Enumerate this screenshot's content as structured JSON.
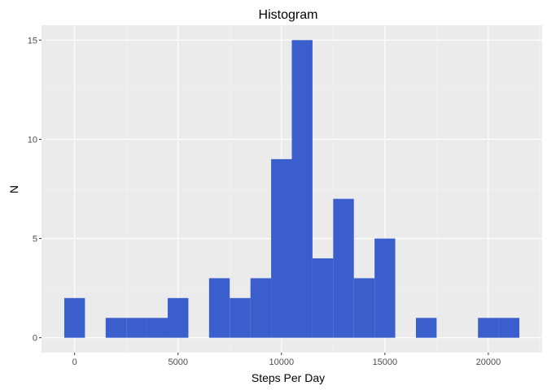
{
  "chart_data": {
    "type": "bar",
    "title": "Histogram",
    "xlabel": "Steps Per Day",
    "ylabel": "N",
    "bin_width": 1000,
    "bins": [
      {
        "start": -500,
        "end": 500,
        "count": 2
      },
      {
        "start": 1500,
        "end": 2500,
        "count": 1
      },
      {
        "start": 2500,
        "end": 3500,
        "count": 1
      },
      {
        "start": 3500,
        "end": 4500,
        "count": 1
      },
      {
        "start": 4500,
        "end": 5500,
        "count": 2
      },
      {
        "start": 6500,
        "end": 7500,
        "count": 3
      },
      {
        "start": 7500,
        "end": 8500,
        "count": 2
      },
      {
        "start": 8500,
        "end": 9500,
        "count": 3
      },
      {
        "start": 9500,
        "end": 10500,
        "count": 9
      },
      {
        "start": 10500,
        "end": 11500,
        "count": 15
      },
      {
        "start": 11500,
        "end": 12500,
        "count": 4
      },
      {
        "start": 12500,
        "end": 13500,
        "count": 7
      },
      {
        "start": 13500,
        "end": 14500,
        "count": 3
      },
      {
        "start": 14500,
        "end": 15500,
        "count": 5
      },
      {
        "start": 16500,
        "end": 17500,
        "count": 1
      },
      {
        "start": 19500,
        "end": 20500,
        "count": 1
      },
      {
        "start": 20500,
        "end": 21500,
        "count": 1
      }
    ],
    "x_ticks": [
      {
        "value": 0,
        "label": "0"
      },
      {
        "value": 5000,
        "label": "5000"
      },
      {
        "value": 10000,
        "label": "10000"
      },
      {
        "value": 15000,
        "label": "15000"
      },
      {
        "value": 20000,
        "label": "20000"
      }
    ],
    "y_ticks": [
      {
        "value": 0,
        "label": "0"
      },
      {
        "value": 5,
        "label": "5"
      },
      {
        "value": 10,
        "label": "10"
      },
      {
        "value": 15,
        "label": "15"
      }
    ],
    "xlim": [
      -1600,
      22600
    ],
    "ylim": [
      -0.75,
      15.75
    ],
    "grid": true,
    "legend": "none",
    "colors": {
      "bar_fill": "#3a5fcd",
      "panel_bg": "#ebebeb",
      "grid_major": "#ffffff",
      "grid_minor": "#f5f5f5",
      "tick_text": "#4d4d4d",
      "tick_mark": "#333333"
    }
  }
}
